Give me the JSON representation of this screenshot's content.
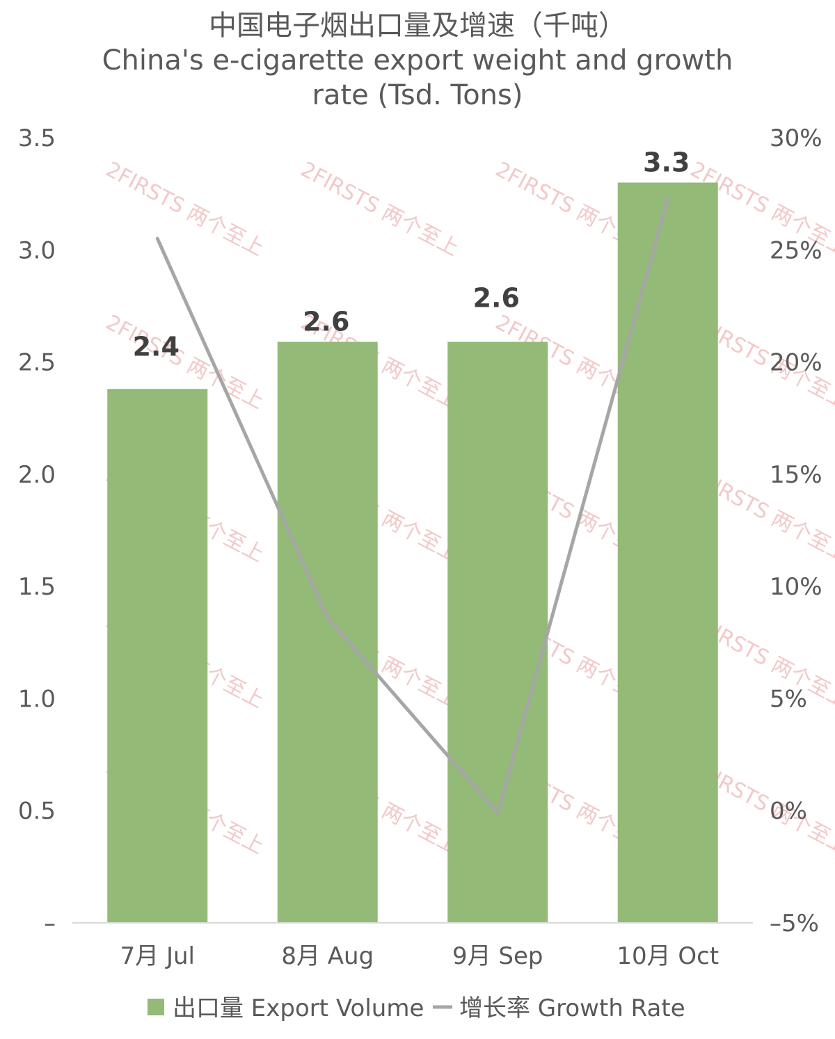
{
  "chart_data": {
    "type": "bar",
    "title_lines": [
      "中国电子烟出口量及增速（千吨）",
      "China's e-cigarette export weight and growth",
      "rate (Tsd. Tons)"
    ],
    "categories": [
      "7月 Jul",
      "8月 Aug",
      "9月 Sep",
      "10月 Oct"
    ],
    "series": [
      {
        "name": "出口量 Export Volume",
        "type": "bar",
        "axis": "left",
        "color": "#93ba76",
        "values": [
          2.38,
          2.59,
          2.59,
          3.3
        ],
        "data_labels": [
          "2.4",
          "2.6",
          "2.6",
          "3.3"
        ]
      },
      {
        "name": "增长率 Growth Rate",
        "type": "line",
        "axis": "right",
        "color": "#a6a6a6",
        "values": [
          25.5,
          8.6,
          -0.1,
          27.3
        ]
      }
    ],
    "y_left": {
      "min": 0,
      "max": 3.5,
      "ticks": [
        0,
        0.5,
        1.0,
        1.5,
        2.0,
        2.5,
        3.0,
        3.5
      ],
      "tick_labels": [
        "–",
        "0.5",
        "1.0",
        "1.5",
        "2.0",
        "2.5",
        "3.0",
        "3.5"
      ]
    },
    "y_right": {
      "min": -5,
      "max": 30,
      "ticks": [
        -5,
        0,
        5,
        10,
        15,
        20,
        25,
        30
      ],
      "tick_labels": [
        "–5%",
        "0%",
        "5%",
        "10%",
        "15%",
        "20%",
        "25%",
        "30%"
      ]
    },
    "legend_position": "bottom",
    "grid": false
  },
  "watermark": {
    "text": "2FIRSTS 两个至上"
  }
}
